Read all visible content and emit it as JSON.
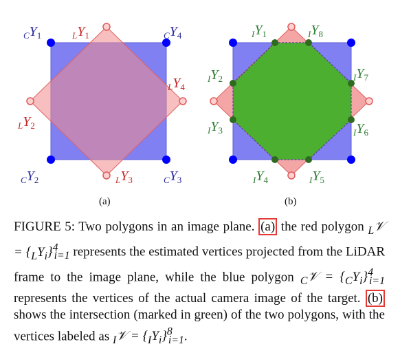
{
  "panel_a": {
    "label": "(a)",
    "blue_vertices": [
      "cY1",
      "cY4",
      "cY2",
      "cY3"
    ],
    "red_vertices": [
      "LY1",
      "LY4",
      "LY2",
      "LY3"
    ]
  },
  "panel_b": {
    "label": "(b)",
    "intersection_vertices": [
      "IY1",
      "IY8",
      "IY2",
      "IY7",
      "IY3",
      "IY6",
      "IY4",
      "IY5"
    ]
  },
  "colors": {
    "blue_fill": "#6666ee",
    "red_fill": "#f4a6a6",
    "overlap_fill": "#a070d0",
    "green_fill": "#4caf30",
    "blue_point": "#0000ff",
    "red_point": "#ff6b6b",
    "green_point": "#2e6b1f"
  },
  "caption": {
    "figure_label": "FIGURE 5:",
    "text1": "Two polygons in an image plane.",
    "ref_a": "(a)",
    "text2": "the red polygon",
    "formula_red": "LV = {LYi} i=1..4",
    "text3": "represents the estimated vertices projected from the LiDAR frame to the image plane, while the blue polygon",
    "formula_blue": "CV = {CYi} i=1..4",
    "text4": "represents the vertices of the actual camera image of the target.",
    "ref_b": "(b)",
    "text5": "shows the intersection (marked in green) of the two polygons, with the vertices labeled as",
    "formula_green": "IV = {IYi} i=1..8",
    "text6": "."
  }
}
